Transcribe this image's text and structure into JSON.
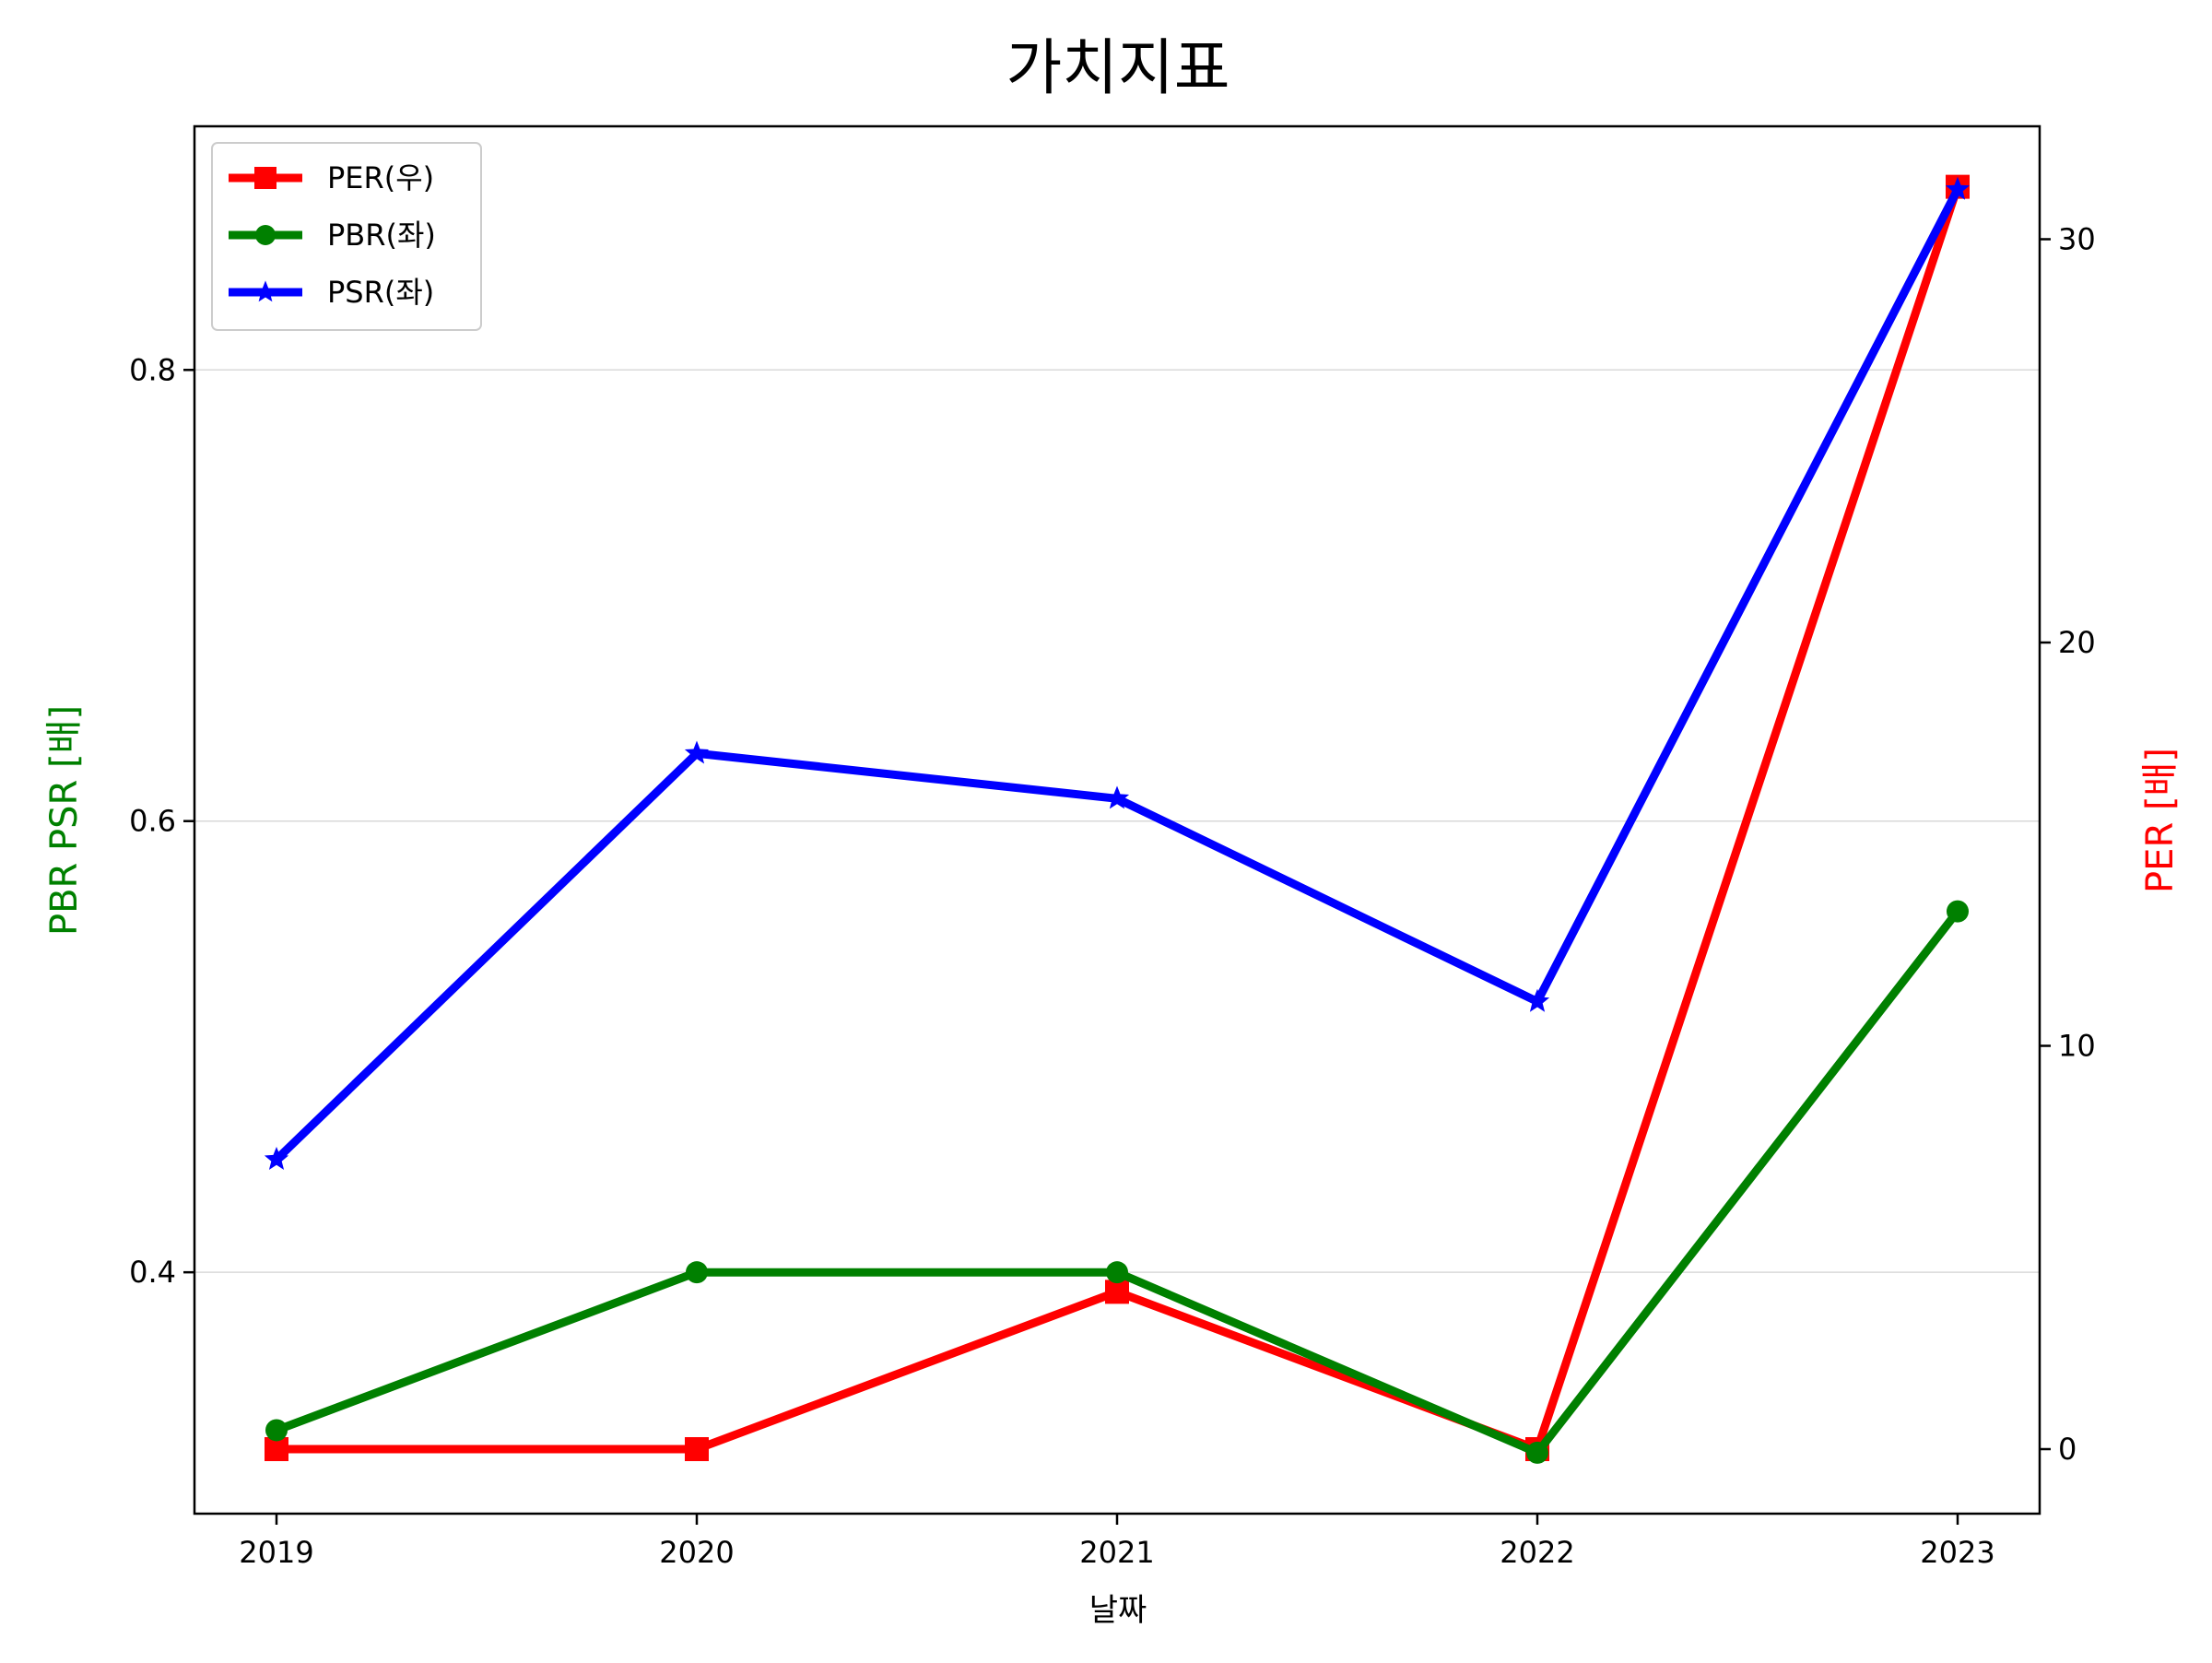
{
  "chart_data": {
    "type": "line",
    "title": "가치지표",
    "xlabel": "날짜",
    "ylabel_left": "PBR PSR [배]",
    "ylabel_right": "PER [배]",
    "categories": [
      "2019",
      "2020",
      "2021",
      "2022",
      "2023"
    ],
    "left_axis": {
      "ylim": [
        0.293,
        0.908
      ],
      "ticks": [
        0.4,
        0.6,
        0.8
      ],
      "tick_labels": [
        "0.4",
        "0.6",
        "0.8"
      ],
      "label_color": "#008000"
    },
    "right_axis": {
      "ylim": [
        -1.6,
        32.8
      ],
      "ticks": [
        0,
        10,
        20,
        30
      ],
      "tick_labels": [
        "0",
        "10",
        "20",
        "30"
      ],
      "label_color": "#ff0000"
    },
    "grid": "horizontal-left",
    "legend_position": "top-left",
    "series": [
      {
        "name": "PER(우)",
        "axis": "right",
        "color": "#ff0000",
        "marker": "square",
        "values": [
          0,
          0,
          3.9,
          0,
          31.3
        ]
      },
      {
        "name": "PBR(좌)",
        "axis": "left",
        "color": "#008000",
        "marker": "circle",
        "values": [
          0.33,
          0.4,
          0.4,
          0.32,
          0.56
        ]
      },
      {
        "name": "PSR(좌)",
        "axis": "left",
        "color": "#0000ff",
        "marker": "star",
        "values": [
          0.45,
          0.63,
          0.61,
          0.52,
          0.88
        ]
      }
    ]
  }
}
